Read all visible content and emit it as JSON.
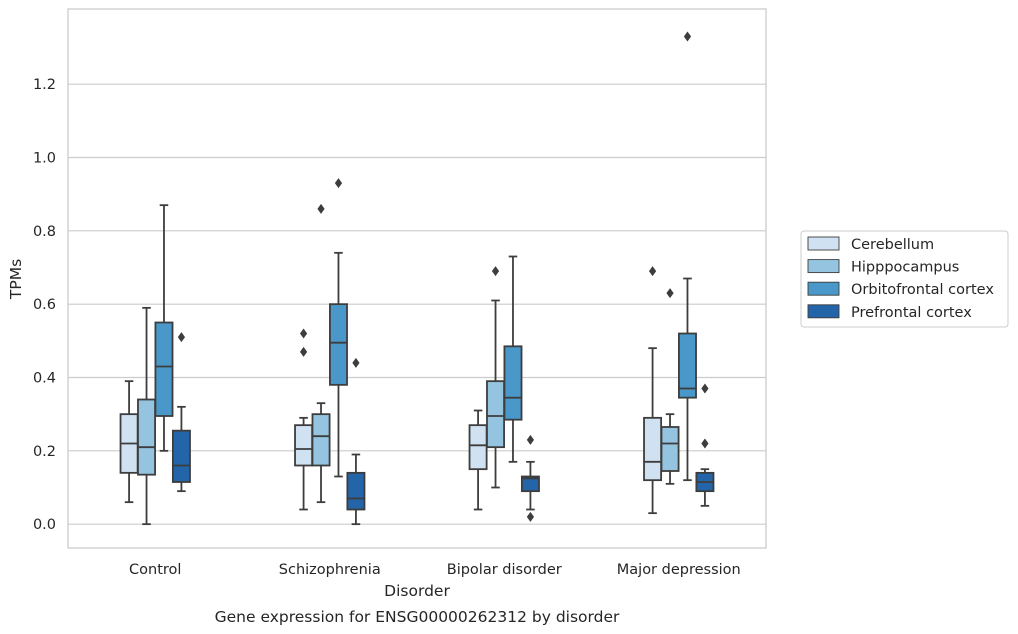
{
  "chart_data": {
    "type": "box",
    "caption": "Gene expression for ENSG00000262312 by disorder",
    "xlabel": "Disorder",
    "ylabel": "TPMs",
    "ylim": [
      -0.065,
      1.405
    ],
    "yticks": [
      "0.0",
      "0.2",
      "0.4",
      "0.6",
      "0.8",
      "1.0",
      "1.2"
    ],
    "categories": [
      "Control",
      "Schizophrenia",
      "Bipolar disorder",
      "Major depression"
    ],
    "grid": true,
    "legend_position": "right",
    "series": [
      {
        "name": "Cerebellum",
        "color": "#d0e1f2",
        "boxes": [
          {
            "whislo": 0.06,
            "q1": 0.14,
            "med": 0.22,
            "q3": 0.3,
            "whishi": 0.39,
            "fliers": []
          },
          {
            "whislo": 0.04,
            "q1": 0.16,
            "med": 0.205,
            "q3": 0.27,
            "whishi": 0.29,
            "fliers": [
              0.47,
              0.52
            ]
          },
          {
            "whislo": 0.04,
            "q1": 0.15,
            "med": 0.215,
            "q3": 0.27,
            "whishi": 0.31,
            "fliers": []
          },
          {
            "whislo": 0.03,
            "q1": 0.12,
            "med": 0.17,
            "q3": 0.29,
            "whishi": 0.48,
            "fliers": [
              0.69
            ]
          }
        ]
      },
      {
        "name": "Hipppocampus",
        "color": "#94c4df",
        "boxes": [
          {
            "whislo": 0.0,
            "q1": 0.135,
            "med": 0.21,
            "q3": 0.34,
            "whishi": 0.59,
            "fliers": []
          },
          {
            "whislo": 0.06,
            "q1": 0.16,
            "med": 0.24,
            "q3": 0.3,
            "whishi": 0.33,
            "fliers": [
              0.86
            ]
          },
          {
            "whislo": 0.1,
            "q1": 0.21,
            "med": 0.295,
            "q3": 0.39,
            "whishi": 0.61,
            "fliers": [
              0.69
            ]
          },
          {
            "whislo": 0.11,
            "q1": 0.145,
            "med": 0.22,
            "q3": 0.265,
            "whishi": 0.3,
            "fliers": [
              0.63
            ]
          }
        ]
      },
      {
        "name": "Orbitofrontal cortex",
        "color": "#4a98c9",
        "boxes": [
          {
            "whislo": 0.2,
            "q1": 0.295,
            "med": 0.43,
            "q3": 0.55,
            "whishi": 0.87,
            "fliers": []
          },
          {
            "whislo": 0.13,
            "q1": 0.38,
            "med": 0.495,
            "q3": 0.6,
            "whishi": 0.74,
            "fliers": [
              0.93
            ]
          },
          {
            "whislo": 0.17,
            "q1": 0.285,
            "med": 0.345,
            "q3": 0.485,
            "whishi": 0.73,
            "fliers": []
          },
          {
            "whislo": 0.12,
            "q1": 0.345,
            "med": 0.37,
            "q3": 0.52,
            "whishi": 0.67,
            "fliers": [
              1.33
            ]
          }
        ]
      },
      {
        "name": "Prefrontal cortex",
        "color": "#2464a8",
        "boxes": [
          {
            "whislo": 0.09,
            "q1": 0.115,
            "med": 0.16,
            "q3": 0.255,
            "whishi": 0.32,
            "fliers": [
              0.51
            ]
          },
          {
            "whislo": 0.0,
            "q1": 0.04,
            "med": 0.07,
            "q3": 0.14,
            "whishi": 0.19,
            "fliers": [
              0.44
            ]
          },
          {
            "whislo": 0.04,
            "q1": 0.09,
            "med": 0.125,
            "q3": 0.13,
            "whishi": 0.17,
            "fliers": [
              0.02,
              0.23
            ]
          },
          {
            "whislo": 0.05,
            "q1": 0.09,
            "med": 0.115,
            "q3": 0.14,
            "whishi": 0.15,
            "fliers": [
              0.22,
              0.37
            ]
          }
        ]
      }
    ]
  }
}
